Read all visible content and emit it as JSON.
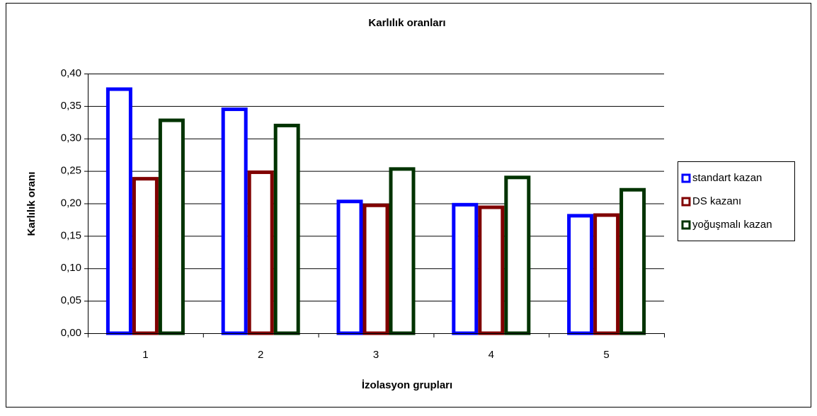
{
  "chart_data": {
    "type": "bar",
    "title": "Karlılık oranları",
    "x_label": "İzolasyon grupları",
    "y_label": "Karlılık oranı",
    "categories": [
      "1",
      "2",
      "3",
      "4",
      "5"
    ],
    "series": [
      {
        "name": "standart kazan",
        "color": "#0000ff",
        "values": [
          0.376,
          0.345,
          0.203,
          0.198,
          0.181
        ]
      },
      {
        "name": "DS kazanı",
        "color": "#800000",
        "values": [
          0.238,
          0.248,
          0.197,
          0.194,
          0.182
        ]
      },
      {
        "name": "yoğuşmalı kazan",
        "color": "#003300",
        "values": [
          0.328,
          0.32,
          0.253,
          0.24,
          0.221
        ]
      }
    ],
    "ylim": [
      0,
      0.4
    ],
    "yticks": [
      {
        "value": 0,
        "label": "0,00"
      },
      {
        "value": 0.05,
        "label": "0,05"
      },
      {
        "value": 0.1,
        "label": "0,10"
      },
      {
        "value": 0.15,
        "label": "0,15"
      },
      {
        "value": 0.2,
        "label": "0,20"
      },
      {
        "value": 0.25,
        "label": "0,25"
      },
      {
        "value": 0.3,
        "label": "0,30"
      },
      {
        "value": 0.35,
        "label": "0,35"
      },
      {
        "value": 0.4,
        "label": "0,40"
      }
    ],
    "grid": true,
    "legend": "right"
  }
}
